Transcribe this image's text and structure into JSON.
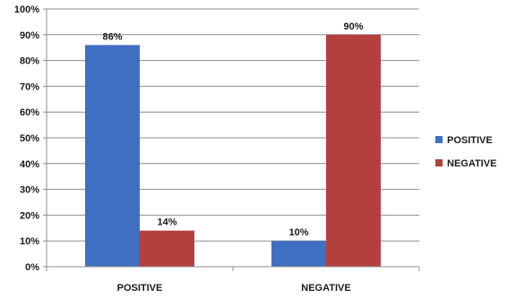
{
  "chart_data": {
    "type": "bar",
    "title": "",
    "xlabel": "",
    "ylabel": "",
    "categories": [
      "POSITIVE",
      "NEGATIVE"
    ],
    "series": [
      {
        "name": "POSITIVE",
        "values": [
          86,
          10
        ],
        "labels": [
          "86%",
          "10%"
        ],
        "color": "#3f6fc0"
      },
      {
        "name": "NEGATIVE",
        "values": [
          14,
          90
        ],
        "labels": [
          "14%",
          "90%"
        ],
        "color": "#b3403f"
      }
    ],
    "ylim": [
      0,
      100
    ],
    "yticks": [
      0,
      10,
      20,
      30,
      40,
      50,
      60,
      70,
      80,
      90,
      100
    ],
    "ytick_labels": [
      "0%",
      "10%",
      "20%",
      "30%",
      "40%",
      "50%",
      "60%",
      "70%",
      "80%",
      "90%",
      "100%"
    ],
    "grid": true,
    "legend_position": "right"
  }
}
